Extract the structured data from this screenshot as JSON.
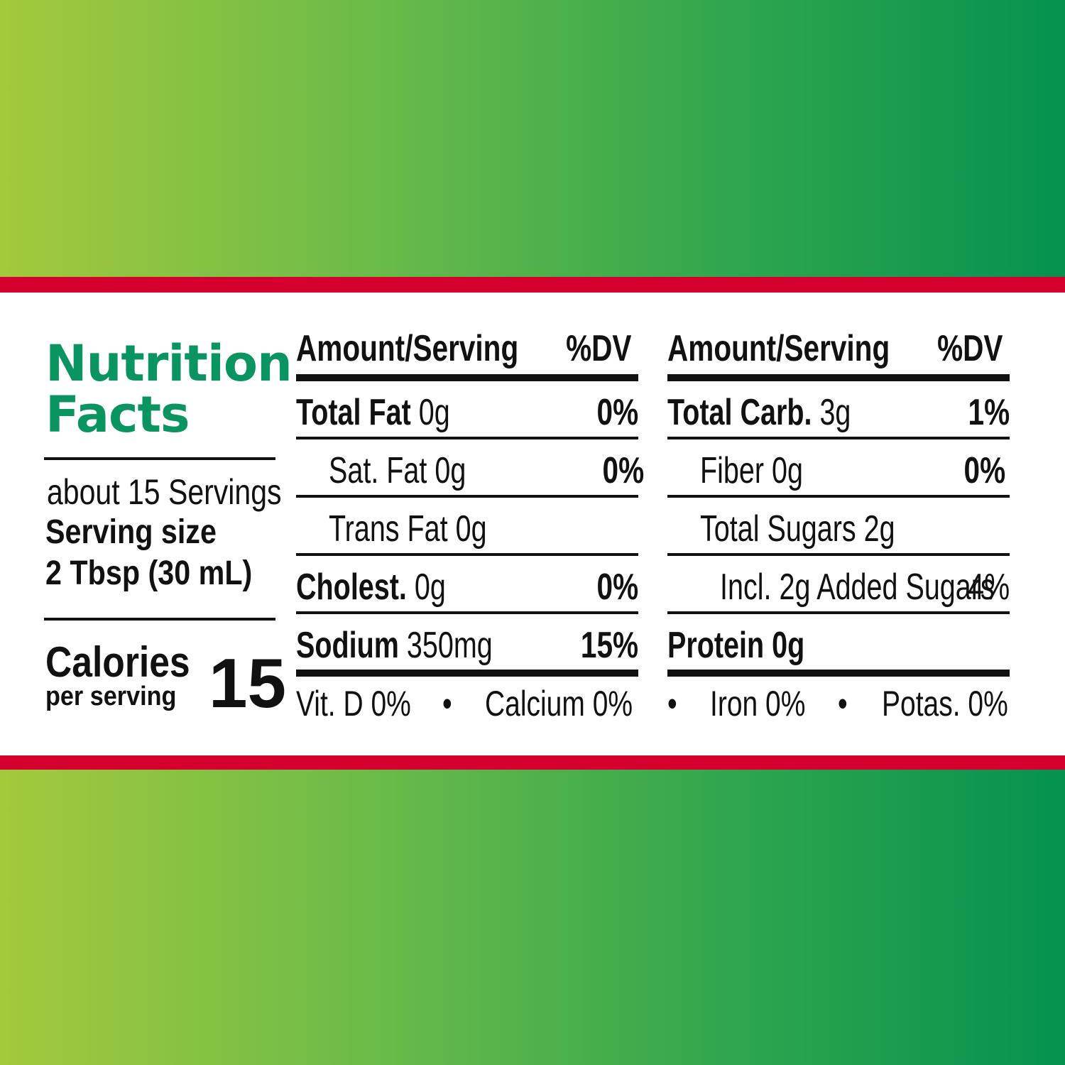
{
  "title": {
    "line1": "Nutrition",
    "line2": "Facts"
  },
  "servings": {
    "count": "about 15 Servings",
    "size_label": "Serving size",
    "size_value": "2 Tbsp (30 mL)"
  },
  "calories": {
    "label": "Calories",
    "sublabel": "per serving",
    "value": "15"
  },
  "header": {
    "amount": "Amount/Serving",
    "dv": "%DV"
  },
  "left_rows": [
    {
      "name": "Total Fat",
      "amount": "0g",
      "dv": "0%"
    },
    {
      "name": "Sat. Fat",
      "amount": "0g",
      "dv": "0%"
    },
    {
      "name": "Trans Fat",
      "amount": "0g",
      "dv": ""
    },
    {
      "name": "Cholest.",
      "amount": "0g",
      "dv": "0%"
    },
    {
      "name": "Sodium",
      "amount": "350mg",
      "dv": "15%"
    }
  ],
  "right_rows": [
    {
      "name": "Total Carb.",
      "amount": "3g",
      "dv": "1%"
    },
    {
      "name": "Fiber",
      "amount": "0g",
      "dv": "0%"
    },
    {
      "name": "Total Sugars",
      "amount": "2g",
      "dv": ""
    },
    {
      "name": "Incl. 2g Added Sugars",
      "amount": "",
      "dv": "4%"
    },
    {
      "name": "Protein",
      "amount": "0g",
      "dv": ""
    }
  ],
  "micronutrients": {
    "vit_d": "Vit. D 0%",
    "calcium": "Calcium 0%",
    "iron": "Iron 0%",
    "potassium": "Potas. 0%",
    "separator": "•"
  },
  "colors": {
    "title_green": "#0a9460",
    "stripe_red": "#d6002e"
  }
}
